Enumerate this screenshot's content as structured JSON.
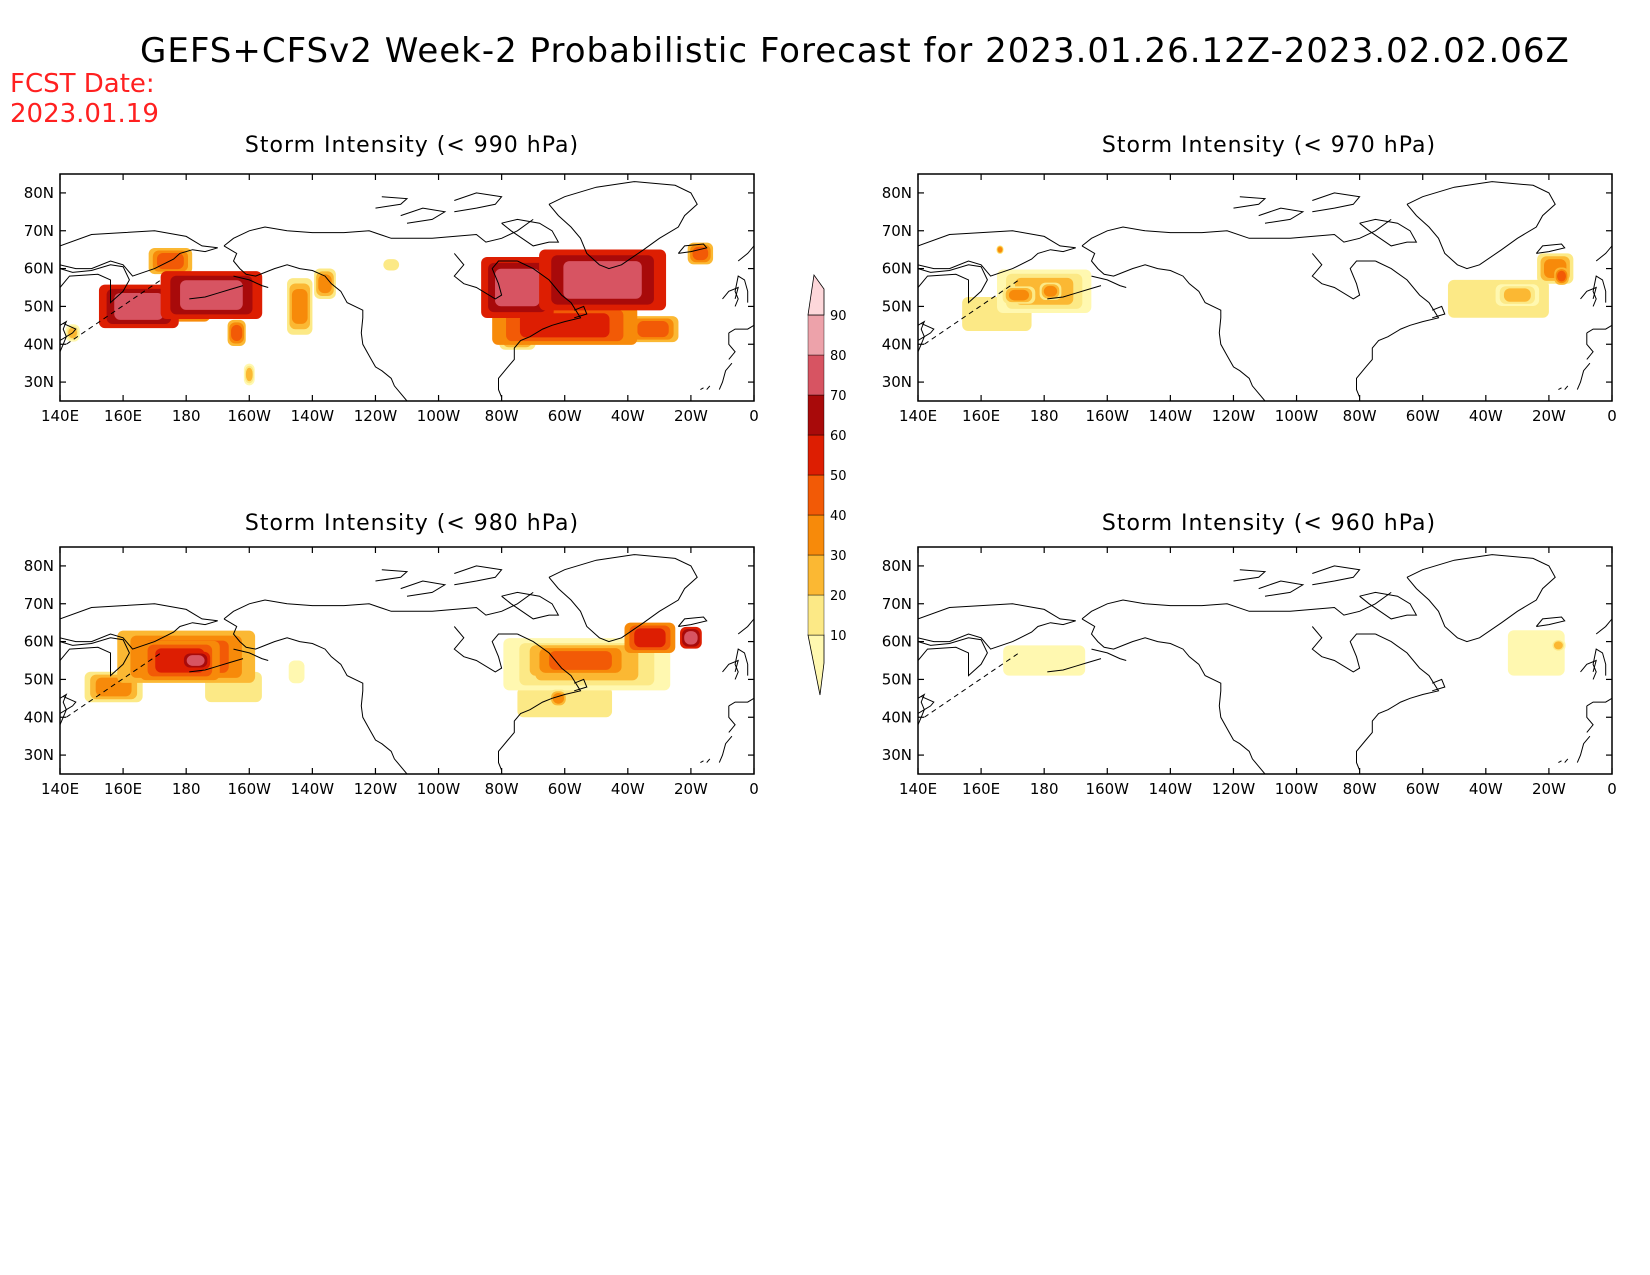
{
  "title": "GEFS+CFSv2 Week-2 Probabilistic Forecast for 2023.01.26.12Z-2023.02.02.06Z",
  "fcst_label": "FCST Date:",
  "fcst_date": "2023.01.19",
  "lon_ticks": [
    "140E",
    "160E",
    "180",
    "160W",
    "140W",
    "120W",
    "100W",
    "80W",
    "60W",
    "40W",
    "20W",
    "0"
  ],
  "lat_ticks": [
    "80N",
    "70N",
    "60N",
    "50N",
    "40N",
    "30N"
  ],
  "colorbar": {
    "levels": [
      "10",
      "20",
      "30",
      "40",
      "50",
      "60",
      "70",
      "80",
      "90"
    ],
    "colors": [
      "#fff8b0",
      "#fce986",
      "#fbb833",
      "#f78a0a",
      "#f25a06",
      "#dd1e02",
      "#a80a0a",
      "#d75462",
      "#eda2aa",
      "#fdd7da"
    ]
  },
  "panels": [
    {
      "title": "Storm Intensity (< 990 hPa)",
      "clusters": [
        {
          "lon": 165,
          "lat": 50,
          "w": 22,
          "h": 10,
          "p": 82
        },
        {
          "lon": 188,
          "lat": 53,
          "w": 28,
          "h": 11,
          "p": 84
        },
        {
          "lon": 175,
          "lat": 50,
          "w": 22,
          "h": 7,
          "p": 62
        },
        {
          "lon": 175,
          "lat": 62,
          "w": 12,
          "h": 6,
          "p": 58
        },
        {
          "lon": 196,
          "lat": 43,
          "w": 5,
          "h": 6,
          "p": 55
        },
        {
          "lon": 200,
          "lat": 32,
          "w": 3,
          "h": 5,
          "p": 35
        },
        {
          "lon": 216,
          "lat": 50,
          "w": 7,
          "h": 13,
          "p": 48
        },
        {
          "lon": 224,
          "lat": 56,
          "w": 6,
          "h": 7,
          "p": 42
        },
        {
          "lon": 285,
          "lat": 55,
          "w": 20,
          "h": 14,
          "p": 82
        },
        {
          "lon": 312,
          "lat": 57,
          "w": 35,
          "h": 14,
          "p": 84
        },
        {
          "lon": 300,
          "lat": 45,
          "w": 40,
          "h": 9,
          "p": 64
        },
        {
          "lon": 328,
          "lat": 44,
          "w": 14,
          "h": 6,
          "p": 52
        },
        {
          "lon": 285,
          "lat": 42,
          "w": 10,
          "h": 6,
          "p": 48
        },
        {
          "lon": 343,
          "lat": 64,
          "w": 7,
          "h": 5,
          "p": 58
        },
        {
          "lon": 245,
          "lat": 61,
          "w": 5,
          "h": 3,
          "p": 28
        },
        {
          "lon": 276,
          "lat": 58,
          "w": 4,
          "h": 3,
          "p": 18
        },
        {
          "lon": 144,
          "lat": 43,
          "w": 4,
          "h": 4,
          "p": 30
        }
      ]
    },
    {
      "title": "Storm Intensity (< 970 hPa)",
      "clusters": [
        {
          "lon": 165,
          "lat": 48,
          "w": 22,
          "h": 9,
          "p": 22
        },
        {
          "lon": 180,
          "lat": 54,
          "w": 26,
          "h": 10,
          "p": 32
        },
        {
          "lon": 172,
          "lat": 53,
          "w": 9,
          "h": 4,
          "p": 42
        },
        {
          "lon": 182,
          "lat": 54,
          "w": 6,
          "h": 4,
          "p": 46
        },
        {
          "lon": 166,
          "lat": 65,
          "w": 2,
          "h": 2,
          "p": 48
        },
        {
          "lon": 324,
          "lat": 52,
          "w": 32,
          "h": 10,
          "p": 22
        },
        {
          "lon": 330,
          "lat": 53,
          "w": 12,
          "h": 5,
          "p": 32
        },
        {
          "lon": 342,
          "lat": 60,
          "w": 10,
          "h": 7,
          "p": 42
        },
        {
          "lon": 344,
          "lat": 58,
          "w": 4,
          "h": 4,
          "p": 55
        }
      ]
    },
    {
      "title": "Storm Intensity (< 980 hPa)",
      "clusters": [
        {
          "lon": 180,
          "lat": 56,
          "w": 38,
          "h": 12,
          "p": 52
        },
        {
          "lon": 178,
          "lat": 55,
          "w": 22,
          "h": 9,
          "p": 62
        },
        {
          "lon": 183,
          "lat": 55,
          "w": 8,
          "h": 4,
          "p": 80
        },
        {
          "lon": 157,
          "lat": 48,
          "w": 16,
          "h": 7,
          "p": 45
        },
        {
          "lon": 195,
          "lat": 48,
          "w": 18,
          "h": 8,
          "p": 26
        },
        {
          "lon": 215,
          "lat": 52,
          "w": 5,
          "h": 6,
          "p": 14
        },
        {
          "lon": 307,
          "lat": 54,
          "w": 46,
          "h": 12,
          "p": 36
        },
        {
          "lon": 305,
          "lat": 55,
          "w": 28,
          "h": 7,
          "p": 56
        },
        {
          "lon": 327,
          "lat": 61,
          "w": 14,
          "h": 7,
          "p": 62
        },
        {
          "lon": 340,
          "lat": 61,
          "w": 6,
          "h": 5,
          "p": 82
        },
        {
          "lon": 300,
          "lat": 44,
          "w": 30,
          "h": 8,
          "p": 20
        },
        {
          "lon": 298,
          "lat": 45,
          "w": 5,
          "h": 4,
          "p": 45
        }
      ]
    },
    {
      "title": "Storm Intensity (< 960 hPa)",
      "clusters": [
        {
          "lon": 180,
          "lat": 55,
          "w": 26,
          "h": 8,
          "p": 18
        },
        {
          "lon": 336,
          "lat": 57,
          "w": 18,
          "h": 12,
          "p": 18
        },
        {
          "lon": 343,
          "lat": 59,
          "w": 4,
          "h": 3,
          "p": 32
        }
      ]
    }
  ]
}
